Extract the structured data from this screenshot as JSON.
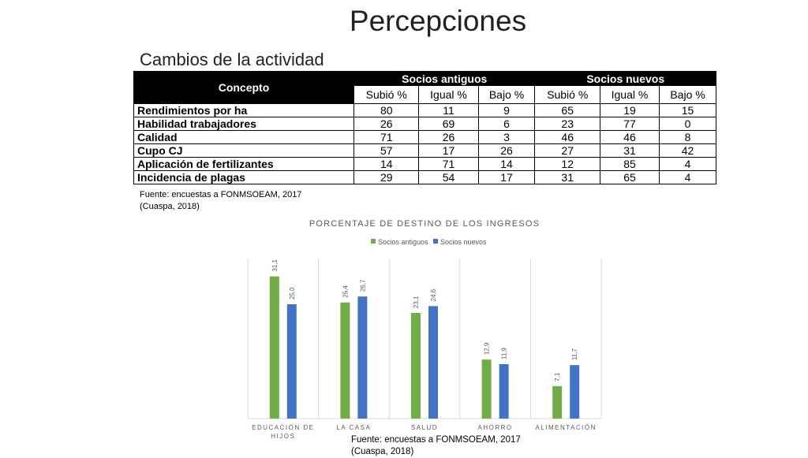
{
  "page": {
    "title": "Percepciones",
    "subtitle": "Cambios de la actividad"
  },
  "table": {
    "concept_header": "Concepto",
    "group_headers": [
      "Socios antiguos",
      "Socios nuevos"
    ],
    "sub_headers": [
      "Subió %",
      "Igual %",
      "Bajo %",
      "Subió %",
      "Igual %",
      "Bajo %"
    ],
    "rows": [
      {
        "label": "Rendimientos por ha",
        "values": [
          80,
          11,
          9,
          65,
          19,
          15
        ]
      },
      {
        "label": "Habilidad trabajadores",
        "values": [
          26,
          69,
          6,
          23,
          77,
          0
        ]
      },
      {
        "label": "Calidad",
        "values": [
          71,
          26,
          3,
          46,
          46,
          8
        ]
      },
      {
        "label": "Cupo CJ",
        "values": [
          57,
          17,
          26,
          27,
          31,
          42
        ]
      },
      {
        "label": "Aplicación de fertilizantes",
        "values": [
          14,
          71,
          14,
          12,
          85,
          4
        ]
      },
      {
        "label": "Incidencia de plagas",
        "values": [
          29,
          54,
          17,
          31,
          65,
          4
        ]
      }
    ],
    "source_line1": "Fuente: encuestas a FONMSOEAM, 2017",
    "source_line2": "(Cuaspa, 2018)"
  },
  "chart_source": {
    "line1": "Fuente: encuestas a FONMSOEAM, 2017",
    "line2": "(Cuaspa, 2018)"
  },
  "chart_data": {
    "type": "bar",
    "title": "PORCENTAJE DE DESTINO DE LOS INGRESOS",
    "categories": [
      "EDUCACIÓN DE HIJOS",
      "LA CASA",
      "SALUD",
      "AHORRO",
      "ALIMENTACIÓN"
    ],
    "series": [
      {
        "name": "Socios antiguos",
        "color": "#70ad47",
        "values": [
          31.1,
          25.4,
          23.1,
          12.9,
          7.1
        ]
      },
      {
        "name": "Socios nuevos",
        "color": "#4472c4",
        "values": [
          25.0,
          26.7,
          24.6,
          11.9,
          11.7
        ]
      }
    ],
    "ylim": [
      0,
      35
    ],
    "grid": "vertical-category-separators",
    "legend": "top-center",
    "value_labels": true
  }
}
